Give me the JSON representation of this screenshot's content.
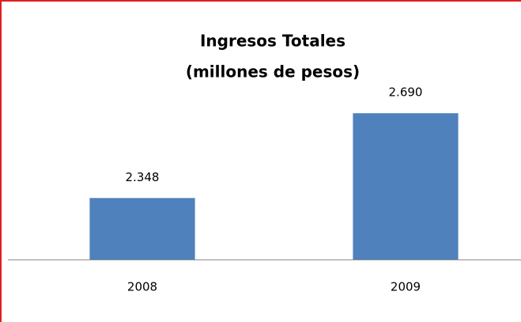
{
  "chart_data": {
    "type": "bar",
    "title": "Ingresos Totales",
    "subtitle": "(millones de pesos)",
    "categories": [
      "2008",
      "2009"
    ],
    "values": [
      2348,
      2690
    ],
    "value_labels": [
      "2.348",
      "2.690"
    ],
    "color": "#4f81bd",
    "ylim": [
      2100,
      3000
    ]
  }
}
